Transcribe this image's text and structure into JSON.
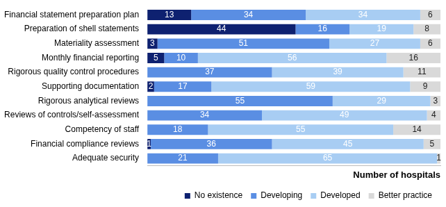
{
  "chart_data": {
    "type": "bar",
    "orientation": "horizontal",
    "stacked": true,
    "data_labels": true,
    "tick_labels": "y",
    "grid": false,
    "legend": "bottom",
    "x_label": "Number of hospitals",
    "xlim": [
      0,
      87
    ],
    "categories": [
      "Financial statement preparation plan",
      "Preparation of shell statements",
      "Materiality assessment",
      "Monthly financial reporting",
      "Rigorous quality control procedures",
      "Supporting documentation",
      "Rigorous analytical reviews",
      "Reviews of controls/self-assessment",
      "Competency of staff",
      "Financial compliance reviews",
      "Adequate security"
    ],
    "series": [
      {
        "name": "No existence",
        "color": "#0e2170",
        "values": [
          13,
          44,
          3,
          5,
          null,
          2,
          null,
          null,
          null,
          1,
          null
        ]
      },
      {
        "name": "Developing",
        "color": "#5a8ee3",
        "values": [
          34,
          16,
          51,
          10,
          37,
          17,
          55,
          34,
          18,
          36,
          21
        ]
      },
      {
        "name": "Developed",
        "color": "#a8cdf3",
        "values": [
          34,
          19,
          27,
          56,
          39,
          59,
          29,
          49,
          55,
          45,
          65
        ]
      },
      {
        "name": "Better practice",
        "color": "#d9d9d9",
        "values": [
          6,
          8,
          6,
          16,
          11,
          9,
          3,
          4,
          14,
          5,
          1
        ]
      }
    ]
  }
}
